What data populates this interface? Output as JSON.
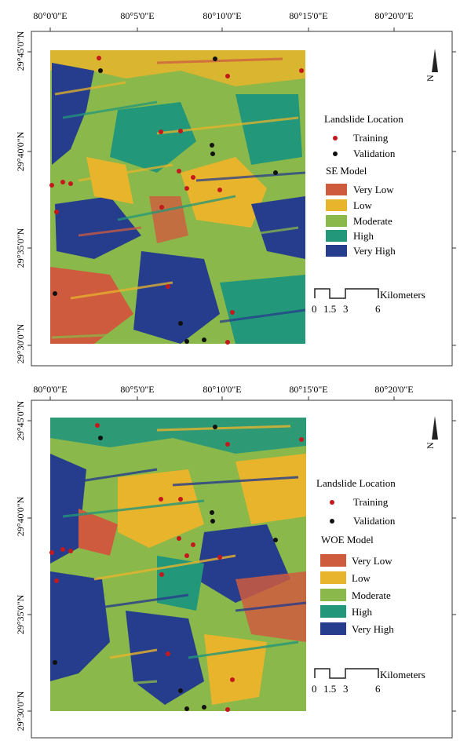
{
  "panels": [
    {
      "model_title": "SE Model",
      "lon_ticks": [
        "80°0'0\"E",
        "80°5'0\"E",
        "80°10'0\"E",
        "80°15'0\"E",
        "80°20'0\"E"
      ],
      "lat_ticks": [
        "29°45'0\"N",
        "29°40'0\"N",
        "29°35'0\"N",
        "29°30'0\"N"
      ],
      "landslide_title": "Landslide Location",
      "training_label": "Training",
      "validation_label": "Validation",
      "classes": [
        {
          "label": "Very Low",
          "color": "#cf5b3f"
        },
        {
          "label": "Low",
          "color": "#e8b42b"
        },
        {
          "label": "Moderate",
          "color": "#8ab84a"
        },
        {
          "label": "High",
          "color": "#23977a"
        },
        {
          "label": "Very High",
          "color": "#263c8c"
        }
      ],
      "scale_title": "Kilometers",
      "scale_ticks": [
        "0",
        "1.5",
        "3",
        "6"
      ],
      "north_label": "N"
    },
    {
      "model_title": "WOE Model",
      "lon_ticks": [
        "80°0'0\"E",
        "80°5'0\"E",
        "80°10'0\"E",
        "80°15'0\"E",
        "80°20'0\"E"
      ],
      "lat_ticks": [
        "29°45'0\"N",
        "29°40'0\"N",
        "29°35'0\"N",
        "29°30'0\"N"
      ],
      "landslide_title": "Landslide Location",
      "training_label": "Training",
      "validation_label": "Validation",
      "classes": [
        {
          "label": "Very Low",
          "color": "#cf5b3f"
        },
        {
          "label": "Low",
          "color": "#e8b42b"
        },
        {
          "label": "Moderate",
          "color": "#8ab84a"
        },
        {
          "label": "High",
          "color": "#23977a"
        },
        {
          "label": "Very High",
          "color": "#263c8c"
        }
      ],
      "scale_title": "Kilometers",
      "scale_ticks": [
        "0",
        "1.5",
        "3",
        "6"
      ],
      "north_label": "N"
    }
  ],
  "colors": {
    "training": "#c4181c",
    "validation": "#111111"
  }
}
